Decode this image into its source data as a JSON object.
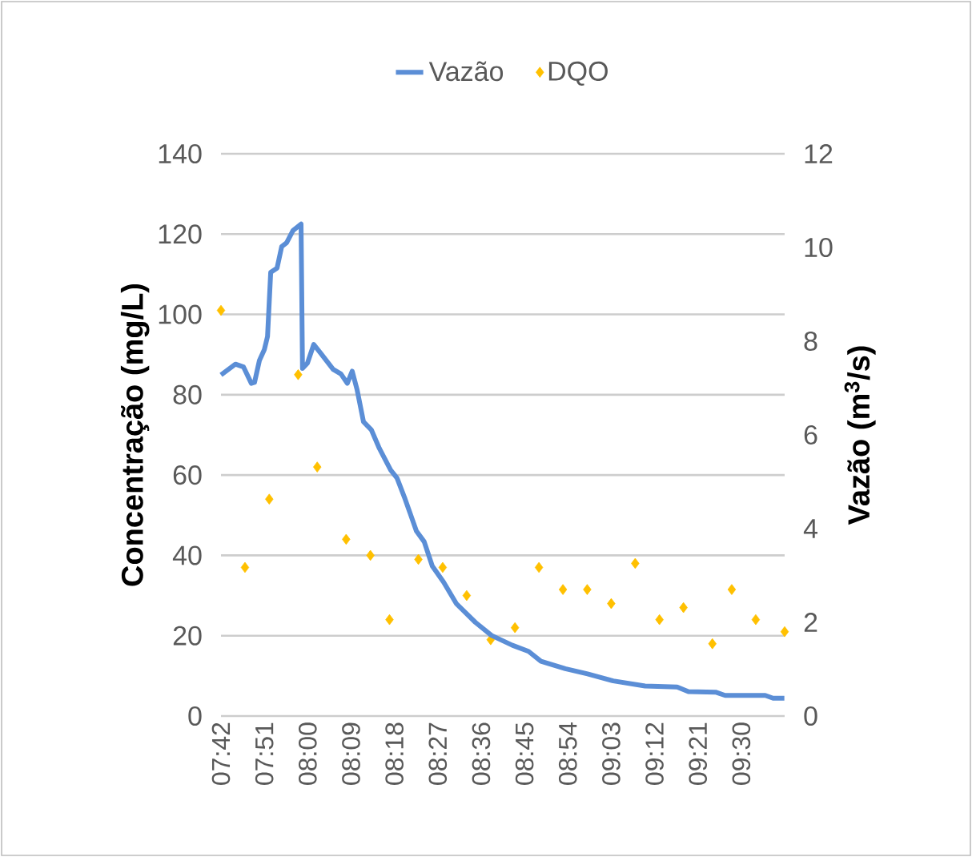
{
  "chart_data": {
    "type": "line",
    "ylabel": "Concentração (mg/L)",
    "y2label": "Vazão (m$^{3}$/s)",
    "xlim": [
      7.7,
      9.65
    ],
    "xticks": [
      {
        "value": 7.7,
        "label": "07:42"
      },
      {
        "value": 7.85,
        "label": "07:51"
      },
      {
        "value": 8.0,
        "label": "08:00"
      },
      {
        "value": 8.15,
        "label": "08:09"
      },
      {
        "value": 8.3,
        "label": "08:18"
      },
      {
        "value": 8.45,
        "label": "08:27"
      },
      {
        "value": 8.6,
        "label": "08:36"
      },
      {
        "value": 8.75,
        "label": "08:45"
      },
      {
        "value": 8.9,
        "label": "08:54"
      },
      {
        "value": 9.05,
        "label": "09:03"
      },
      {
        "value": 9.2,
        "label": "09:12"
      },
      {
        "value": 9.35,
        "label": "09:21"
      },
      {
        "value": 9.5,
        "label": "09:30"
      }
    ],
    "ylim": [
      0,
      140
    ],
    "yticks": [
      0,
      20,
      40,
      60,
      80,
      100,
      120,
      140
    ],
    "y2lim": [
      0,
      12
    ],
    "y2ticks": [
      0,
      2,
      4,
      6,
      8,
      10,
      12
    ],
    "grid": "y",
    "legend": "top",
    "series": [
      {
        "name": "Vazão",
        "axis": "y2",
        "color": "#5b8ed6",
        "x": [
          7.7,
          7.75,
          7.778,
          7.805,
          7.816,
          7.833,
          7.85,
          7.861,
          7.872,
          7.894,
          7.91,
          7.927,
          7.949,
          7.977,
          7.982,
          7.999,
          8.021,
          8.043,
          8.088,
          8.115,
          8.137,
          8.154,
          8.171,
          8.193,
          8.22,
          8.248,
          8.287,
          8.309,
          8.337,
          8.376,
          8.403,
          8.431,
          8.47,
          8.514,
          8.58,
          8.636,
          8.708,
          8.764,
          8.807,
          8.891,
          8.968,
          9.057,
          9.167,
          9.278,
          9.317,
          9.411,
          9.444,
          9.583,
          9.61,
          9.649
        ],
        "values": [
          7.28,
          7.51,
          7.45,
          7.1,
          7.12,
          7.59,
          7.82,
          8.1,
          9.47,
          9.56,
          10.02,
          10.1,
          10.36,
          10.5,
          7.42,
          7.53,
          7.93,
          7.76,
          7.4,
          7.3,
          7.1,
          7.36,
          6.96,
          6.28,
          6.11,
          5.71,
          5.25,
          5.08,
          4.63,
          3.95,
          3.72,
          3.2,
          2.86,
          2.4,
          2.0,
          1.72,
          1.51,
          1.38,
          1.17,
          1.01,
          0.9,
          0.75,
          0.64,
          0.62,
          0.52,
          0.51,
          0.44,
          0.44,
          0.38,
          0.38
        ]
      },
      {
        "name": "DQO",
        "type": "scatter",
        "marker": "diamond",
        "color": "#ffc000",
        "x": [
          7.7,
          7.783,
          7.867,
          7.967,
          8.033,
          8.133,
          8.217,
          8.283,
          8.383,
          8.467,
          8.55,
          8.633,
          8.717,
          8.8,
          8.883,
          8.967,
          9.05,
          9.133,
          9.217,
          9.3,
          9.4,
          9.467,
          9.55,
          9.65
        ],
        "values": [
          101,
          37,
          54,
          85,
          62,
          44,
          40,
          24,
          39,
          37,
          30,
          19,
          22,
          37,
          31.5,
          31.5,
          28,
          38,
          24,
          27,
          18,
          31.5,
          24,
          21
        ]
      }
    ]
  }
}
